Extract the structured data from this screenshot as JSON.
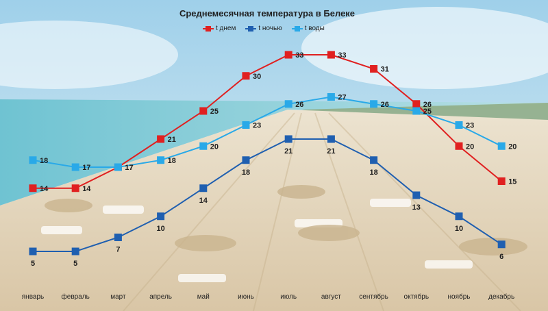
{
  "chart_data": {
    "type": "line",
    "title": "Среднемесячная температура в Белеке",
    "categories": [
      "январь",
      "февраль",
      "март",
      "апрель",
      "май",
      "июнь",
      "июль",
      "август",
      "сентябрь",
      "октябрь",
      "ноябрь",
      "декабрь"
    ],
    "series": [
      {
        "name": "t днем",
        "color": "#e02020",
        "values": [
          14,
          14,
          17,
          21,
          25,
          30,
          33,
          33,
          31,
          26,
          20,
          15
        ]
      },
      {
        "name": "t ночью",
        "color": "#1f5fb0",
        "values": [
          5,
          5,
          7,
          10,
          14,
          18,
          21,
          21,
          18,
          13,
          10,
          6
        ]
      },
      {
        "name": "t воды",
        "color": "#29a9e8",
        "values": [
          18,
          17,
          17,
          18,
          20,
          23,
          26,
          27,
          26,
          25,
          23,
          20
        ]
      }
    ],
    "ylim": [
      5,
      33
    ],
    "grid": false,
    "legend_position": "top-center",
    "data_labels": true
  }
}
